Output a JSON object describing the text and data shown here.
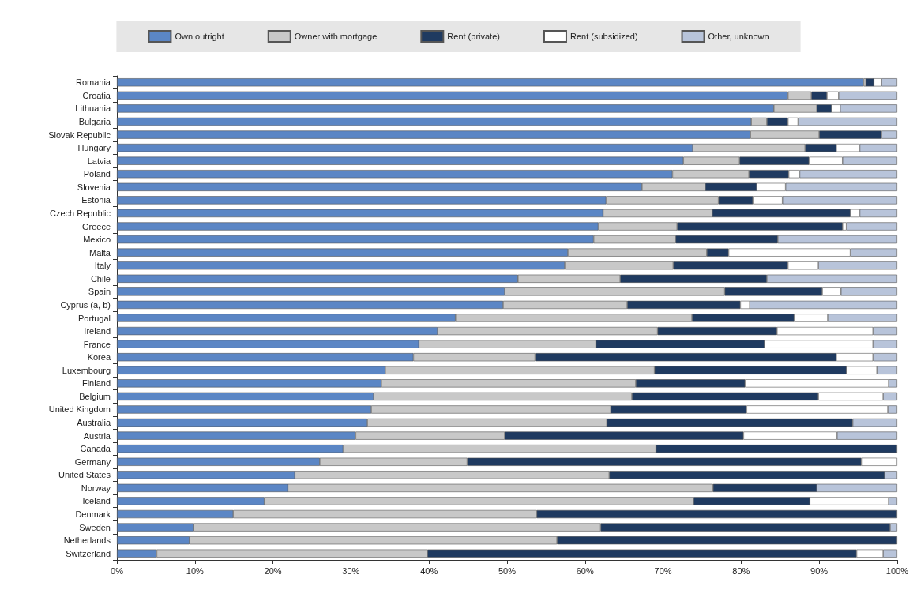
{
  "chart_data": {
    "type": "bar",
    "orientation": "horizontal",
    "stacked": true,
    "legend": "top",
    "categories": [
      "Romania",
      "Croatia",
      "Lithuania",
      "Bulgaria",
      "Slovak Republic",
      "Hungary",
      "Latvia",
      "Poland",
      "Slovenia",
      "Estonia",
      "Czech Republic",
      "Greece",
      "Mexico",
      "Malta",
      "Italy",
      "Chile",
      "Spain",
      "Cyprus (a, b)",
      "Portugal",
      "Ireland",
      "France",
      "Korea",
      "Luxembourg",
      "Finland",
      "Belgium",
      "United Kingdom",
      "Australia",
      "Austria",
      "Canada",
      "Germany",
      "United States",
      "Norway",
      "Iceland",
      "Denmark",
      "Sweden",
      "Netherlands",
      "Switzerland"
    ],
    "xlim": [
      0,
      100
    ],
    "xticks": [
      {
        "value": 0,
        "label": "0%"
      },
      {
        "value": 10,
        "label": "10%"
      },
      {
        "value": 20,
        "label": "20%"
      },
      {
        "value": 30,
        "label": "30%"
      },
      {
        "value": 40,
        "label": "40%"
      },
      {
        "value": 50,
        "label": "50%"
      },
      {
        "value": 60,
        "label": "60%"
      },
      {
        "value": 70,
        "label": "70%"
      },
      {
        "value": 80,
        "label": "80%"
      },
      {
        "value": 90,
        "label": "90%"
      },
      {
        "value": 100,
        "label": "100%"
      }
    ],
    "series": [
      {
        "name": "Own outright",
        "color": "#5b86c5",
        "values": [
          95.7,
          86,
          84.2,
          81.3,
          81.2,
          73.8,
          72.6,
          71.2,
          67.3,
          62.7,
          62.3,
          61.7,
          61.1,
          57.8,
          57.4,
          51.4,
          49.7,
          49.5,
          43.4,
          41.1,
          38.7,
          38,
          34.4,
          33.9,
          32.9,
          32.6,
          32.1,
          30.6,
          29,
          26,
          22.8,
          21.9,
          18.9,
          14.9,
          9.8,
          9.3,
          5.1
        ]
      },
      {
        "name": "Owner with mortgage",
        "color": "#c8c8c8",
        "values": [
          0.3,
          3,
          5.5,
          2,
          8.8,
          14.4,
          7.2,
          9.8,
          8.1,
          14.4,
          14,
          10.1,
          10.5,
          17.8,
          13.9,
          13.1,
          28.2,
          15.9,
          30.3,
          28.2,
          22.7,
          15.6,
          34.5,
          32.6,
          33.1,
          30.7,
          30.7,
          19.1,
          40.1,
          18.9,
          40.3,
          54.5,
          55,
          38.9,
          52.2,
          47.1,
          34.7
        ]
      },
      {
        "name": "Rent (private)",
        "color": "#1f3a60",
        "values": [
          1,
          2,
          1.9,
          2.7,
          8,
          4,
          8.9,
          5.1,
          6.6,
          4.4,
          17.7,
          21.2,
          13.1,
          2.8,
          14.7,
          18.8,
          12.5,
          14.5,
          13.1,
          15.3,
          21.6,
          38.6,
          24.6,
          14,
          23.9,
          17.4,
          31.5,
          30.6,
          30.9,
          50.5,
          35.3,
          13.3,
          14.9,
          46.2,
          37.1,
          43.6,
          55
        ]
      },
      {
        "name": "Rent (subsidized)",
        "color": "#ffffff",
        "values": [
          1,
          1.5,
          1.1,
          1.3,
          0,
          3,
          4.3,
          1.4,
          3.7,
          3.8,
          1.2,
          0.5,
          0,
          15.6,
          3.9,
          0,
          2.4,
          1.2,
          4.3,
          12.3,
          13.9,
          4.7,
          3.9,
          18.4,
          8.3,
          18.1,
          0,
          12,
          0,
          4.6,
          0,
          0,
          10.1,
          0,
          0,
          0,
          3.4
        ]
      },
      {
        "name": "Other, unknown",
        "color": "#b8c4da",
        "values": [
          2,
          7.5,
          7.3,
          12.7,
          2,
          4.8,
          7,
          12.5,
          14.3,
          14.7,
          4.8,
          6.5,
          15.3,
          6,
          10.1,
          16.7,
          7.2,
          18.9,
          8.9,
          3.1,
          3.1,
          3.1,
          2.6,
          1.1,
          1.8,
          1.2,
          5.7,
          7.7,
          0,
          0,
          1.6,
          10.3,
          1.1,
          0,
          0.9,
          0,
          1.8
        ]
      }
    ]
  }
}
